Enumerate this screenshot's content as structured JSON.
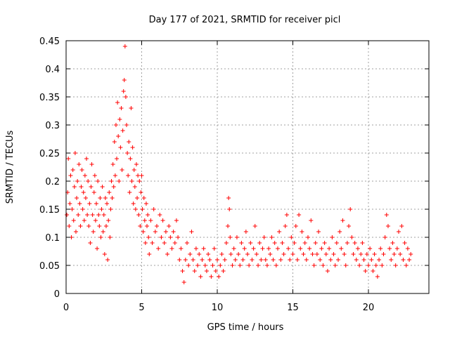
{
  "chart_data": {
    "type": "scatter",
    "title": "Day 177 of 2021, SRMTID for receiver picl",
    "xlabel": "GPS time / hours",
    "ylabel": "SRMTID / TECUs",
    "xlim": [
      0,
      24
    ],
    "ylim": [
      0,
      0.45
    ],
    "x_ticks": [
      0,
      5,
      10,
      15,
      20
    ],
    "x_tick_labels": [
      "0",
      "5",
      "10",
      "15",
      "20"
    ],
    "y_ticks": [
      0,
      0.05,
      0.1,
      0.15,
      0.2,
      0.25,
      0.3,
      0.35,
      0.4,
      0.45
    ],
    "y_tick_labels": [
      "0",
      "0.05",
      "0.1",
      "0.15",
      "0.2",
      "0.25",
      "0.3",
      "0.35",
      "0.4",
      "0.45"
    ],
    "grid": true,
    "marker": "plus",
    "color": "#ff0000",
    "series": [
      {
        "name": "SRMTID",
        "points": [
          [
            0.05,
            0.14
          ],
          [
            0.1,
            0.18
          ],
          [
            0.15,
            0.24
          ],
          [
            0.2,
            0.12
          ],
          [
            0.25,
            0.16
          ],
          [
            0.3,
            0.21
          ],
          [
            0.35,
            0.1
          ],
          [
            0.4,
            0.15
          ],
          [
            0.45,
            0.22
          ],
          [
            0.5,
            0.13
          ],
          [
            0.55,
            0.19
          ],
          [
            0.6,
            0.25
          ],
          [
            0.65,
            0.11
          ],
          [
            0.7,
            0.17
          ],
          [
            0.75,
            0.2
          ],
          [
            0.8,
            0.14
          ],
          [
            0.85,
            0.23
          ],
          [
            0.9,
            0.16
          ],
          [
            0.95,
            0.12
          ],
          [
            1.0,
            0.19
          ],
          [
            1.05,
            0.22
          ],
          [
            1.1,
            0.15
          ],
          [
            1.15,
            0.18
          ],
          [
            1.2,
            0.13
          ],
          [
            1.25,
            0.21
          ],
          [
            1.3,
            0.17
          ],
          [
            1.35,
            0.24
          ],
          [
            1.4,
            0.14
          ],
          [
            1.45,
            0.2
          ],
          [
            1.5,
            0.12
          ],
          [
            1.55,
            0.16
          ],
          [
            1.6,
            0.09
          ],
          [
            1.65,
            0.19
          ],
          [
            1.7,
            0.23
          ],
          [
            1.75,
            0.14
          ],
          [
            1.8,
            0.11
          ],
          [
            1.85,
            0.18
          ],
          [
            1.9,
            0.21
          ],
          [
            1.95,
            0.13
          ],
          [
            2.0,
            0.16
          ],
          [
            2.05,
            0.08
          ],
          [
            2.1,
            0.2
          ],
          [
            2.15,
            0.14
          ],
          [
            2.2,
            0.12
          ],
          [
            2.25,
            0.17
          ],
          [
            2.3,
            0.1
          ],
          [
            2.35,
            0.15
          ],
          [
            2.4,
            0.19
          ],
          [
            2.45,
            0.11
          ],
          [
            2.5,
            0.14
          ],
          [
            2.55,
            0.07
          ],
          [
            2.6,
            0.17
          ],
          [
            2.65,
            0.12
          ],
          [
            2.7,
            0.16
          ],
          [
            2.75,
            0.06
          ],
          [
            2.8,
            0.13
          ],
          [
            2.85,
            0.18
          ],
          [
            2.9,
            0.1
          ],
          [
            2.95,
            0.15
          ],
          [
            3.0,
            0.2
          ],
          [
            3.05,
            0.17
          ],
          [
            3.1,
            0.23
          ],
          [
            3.15,
            0.19
          ],
          [
            3.2,
            0.27
          ],
          [
            3.25,
            0.21
          ],
          [
            3.3,
            0.3
          ],
          [
            3.35,
            0.24
          ],
          [
            3.4,
            0.34
          ],
          [
            3.45,
            0.28
          ],
          [
            3.5,
            0.2
          ],
          [
            3.55,
            0.31
          ],
          [
            3.6,
            0.26
          ],
          [
            3.65,
            0.33
          ],
          [
            3.7,
            0.22
          ],
          [
            3.75,
            0.29
          ],
          [
            3.8,
            0.36
          ],
          [
            3.85,
            0.38
          ],
          [
            3.9,
            0.44
          ],
          [
            3.95,
            0.35
          ],
          [
            4.0,
            0.3
          ],
          [
            4.05,
            0.25
          ],
          [
            4.1,
            0.21
          ],
          [
            4.15,
            0.27
          ],
          [
            4.2,
            0.18
          ],
          [
            4.25,
            0.24
          ],
          [
            4.3,
            0.33
          ],
          [
            4.35,
            0.2
          ],
          [
            4.4,
            0.26
          ],
          [
            4.45,
            0.16
          ],
          [
            4.5,
            0.22
          ],
          [
            4.55,
            0.19
          ],
          [
            4.6,
            0.15
          ],
          [
            4.65,
            0.23
          ],
          [
            4.7,
            0.17
          ],
          [
            4.75,
            0.21
          ],
          [
            4.8,
            0.14
          ],
          [
            4.85,
            0.2
          ],
          [
            4.9,
            0.12
          ],
          [
            4.95,
            0.18
          ],
          [
            5.0,
            0.21
          ],
          [
            5.05,
            0.15
          ],
          [
            5.1,
            0.11
          ],
          [
            5.15,
            0.17
          ],
          [
            5.2,
            0.13
          ],
          [
            5.25,
            0.09
          ],
          [
            5.3,
            0.16
          ],
          [
            5.35,
            0.12
          ],
          [
            5.4,
            0.14
          ],
          [
            5.45,
            0.1
          ],
          [
            5.5,
            0.07
          ],
          [
            5.6,
            0.13
          ],
          [
            5.7,
            0.09
          ],
          [
            5.8,
            0.15
          ],
          [
            5.9,
            0.11
          ],
          [
            6.0,
            0.12
          ],
          [
            6.1,
            0.08
          ],
          [
            6.2,
            0.14
          ],
          [
            6.3,
            0.1
          ],
          [
            6.4,
            0.13
          ],
          [
            6.5,
            0.09
          ],
          [
            6.6,
            0.11
          ],
          [
            6.7,
            0.07
          ],
          [
            6.8,
            0.12
          ],
          [
            6.9,
            0.1
          ],
          [
            7.0,
            0.08
          ],
          [
            7.1,
            0.11
          ],
          [
            7.2,
            0.09
          ],
          [
            7.3,
            0.13
          ],
          [
            7.4,
            0.1
          ],
          [
            7.5,
            0.06
          ],
          [
            7.6,
            0.08
          ],
          [
            7.7,
            0.04
          ],
          [
            7.8,
            0.02
          ],
          [
            7.9,
            0.06
          ],
          [
            8.0,
            0.09
          ],
          [
            8.1,
            0.05
          ],
          [
            8.2,
            0.07
          ],
          [
            8.3,
            0.11
          ],
          [
            8.4,
            0.06
          ],
          [
            8.5,
            0.04
          ],
          [
            8.6,
            0.08
          ],
          [
            8.7,
            0.05
          ],
          [
            8.8,
            0.07
          ],
          [
            8.9,
            0.03
          ],
          [
            9.0,
            0.06
          ],
          [
            9.1,
            0.08
          ],
          [
            9.2,
            0.05
          ],
          [
            9.3,
            0.04
          ],
          [
            9.4,
            0.07
          ],
          [
            9.5,
            0.06
          ],
          [
            9.6,
            0.03
          ],
          [
            9.7,
            0.05
          ],
          [
            9.8,
            0.08
          ],
          [
            9.9,
            0.04
          ],
          [
            10.0,
            0.06
          ],
          [
            10.1,
            0.03
          ],
          [
            10.2,
            0.05
          ],
          [
            10.3,
            0.07
          ],
          [
            10.4,
            0.04
          ],
          [
            10.5,
            0.06
          ],
          [
            10.6,
            0.09
          ],
          [
            10.7,
            0.12
          ],
          [
            10.75,
            0.17
          ],
          [
            10.8,
            0.15
          ],
          [
            10.85,
            0.1
          ],
          [
            10.9,
            0.07
          ],
          [
            11.0,
            0.05
          ],
          [
            11.1,
            0.08
          ],
          [
            11.2,
            0.06
          ],
          [
            11.3,
            0.1
          ],
          [
            11.4,
            0.07
          ],
          [
            11.5,
            0.05
          ],
          [
            11.6,
            0.09
          ],
          [
            11.7,
            0.06
          ],
          [
            11.8,
            0.08
          ],
          [
            11.9,
            0.11
          ],
          [
            12.0,
            0.07
          ],
          [
            12.1,
            0.05
          ],
          [
            12.2,
            0.09
          ],
          [
            12.3,
            0.06
          ],
          [
            12.4,
            0.08
          ],
          [
            12.5,
            0.12
          ],
          [
            12.6,
            0.07
          ],
          [
            12.7,
            0.05
          ],
          [
            12.8,
            0.09
          ],
          [
            12.9,
            0.06
          ],
          [
            13.0,
            0.08
          ],
          [
            13.1,
            0.1
          ],
          [
            13.2,
            0.06
          ],
          [
            13.3,
            0.05
          ],
          [
            13.4,
            0.08
          ],
          [
            13.5,
            0.07
          ],
          [
            13.6,
            0.1
          ],
          [
            13.7,
            0.06
          ],
          [
            13.8,
            0.09
          ],
          [
            13.9,
            0.05
          ],
          [
            14.0,
            0.08
          ],
          [
            14.1,
            0.11
          ],
          [
            14.2,
            0.06
          ],
          [
            14.3,
            0.09
          ],
          [
            14.4,
            0.07
          ],
          [
            14.5,
            0.12
          ],
          [
            14.6,
            0.14
          ],
          [
            14.7,
            0.08
          ],
          [
            14.8,
            0.06
          ],
          [
            14.9,
            0.1
          ],
          [
            15.0,
            0.07
          ],
          [
            15.1,
            0.09
          ],
          [
            15.2,
            0.12
          ],
          [
            15.3,
            0.06
          ],
          [
            15.4,
            0.14
          ],
          [
            15.5,
            0.08
          ],
          [
            15.6,
            0.11
          ],
          [
            15.7,
            0.07
          ],
          [
            15.8,
            0.09
          ],
          [
            15.9,
            0.06
          ],
          [
            16.0,
            0.1
          ],
          [
            16.1,
            0.08
          ],
          [
            16.2,
            0.13
          ],
          [
            16.3,
            0.07
          ],
          [
            16.4,
            0.05
          ],
          [
            16.5,
            0.09
          ],
          [
            16.6,
            0.07
          ],
          [
            16.7,
            0.11
          ],
          [
            16.8,
            0.06
          ],
          [
            16.9,
            0.08
          ],
          [
            17.0,
            0.05
          ],
          [
            17.1,
            0.09
          ],
          [
            17.2,
            0.07
          ],
          [
            17.3,
            0.04
          ],
          [
            17.4,
            0.08
          ],
          [
            17.5,
            0.06
          ],
          [
            17.6,
            0.1
          ],
          [
            17.7,
            0.07
          ],
          [
            17.8,
            0.05
          ],
          [
            17.9,
            0.09
          ],
          [
            18.0,
            0.06
          ],
          [
            18.1,
            0.11
          ],
          [
            18.2,
            0.08
          ],
          [
            18.3,
            0.13
          ],
          [
            18.4,
            0.07
          ],
          [
            18.5,
            0.05
          ],
          [
            18.6,
            0.09
          ],
          [
            18.7,
            0.12
          ],
          [
            18.8,
            0.15
          ],
          [
            18.9,
            0.1
          ],
          [
            19.0,
            0.07
          ],
          [
            19.1,
            0.09
          ],
          [
            19.2,
            0.06
          ],
          [
            19.3,
            0.08
          ],
          [
            19.4,
            0.05
          ],
          [
            19.5,
            0.07
          ],
          [
            19.6,
            0.09
          ],
          [
            19.7,
            0.06
          ],
          [
            19.8,
            0.04
          ],
          [
            19.9,
            0.07
          ],
          [
            20.0,
            0.05
          ],
          [
            20.1,
            0.08
          ],
          [
            20.2,
            0.06
          ],
          [
            20.3,
            0.04
          ],
          [
            20.4,
            0.07
          ],
          [
            20.5,
            0.05
          ],
          [
            20.6,
            0.03
          ],
          [
            20.7,
            0.06
          ],
          [
            20.8,
            0.08
          ],
          [
            20.9,
            0.05
          ],
          [
            21.0,
            0.07
          ],
          [
            21.1,
            0.1
          ],
          [
            21.2,
            0.14
          ],
          [
            21.3,
            0.12
          ],
          [
            21.4,
            0.08
          ],
          [
            21.5,
            0.06
          ],
          [
            21.6,
            0.09
          ],
          [
            21.7,
            0.07
          ],
          [
            21.8,
            0.05
          ],
          [
            21.9,
            0.08
          ],
          [
            22.0,
            0.11
          ],
          [
            22.1,
            0.07
          ],
          [
            22.2,
            0.12
          ],
          [
            22.3,
            0.06
          ],
          [
            22.4,
            0.09
          ],
          [
            22.5,
            0.05
          ],
          [
            22.6,
            0.08
          ],
          [
            22.7,
            0.06
          ],
          [
            22.8,
            0.07
          ]
        ]
      }
    ]
  }
}
